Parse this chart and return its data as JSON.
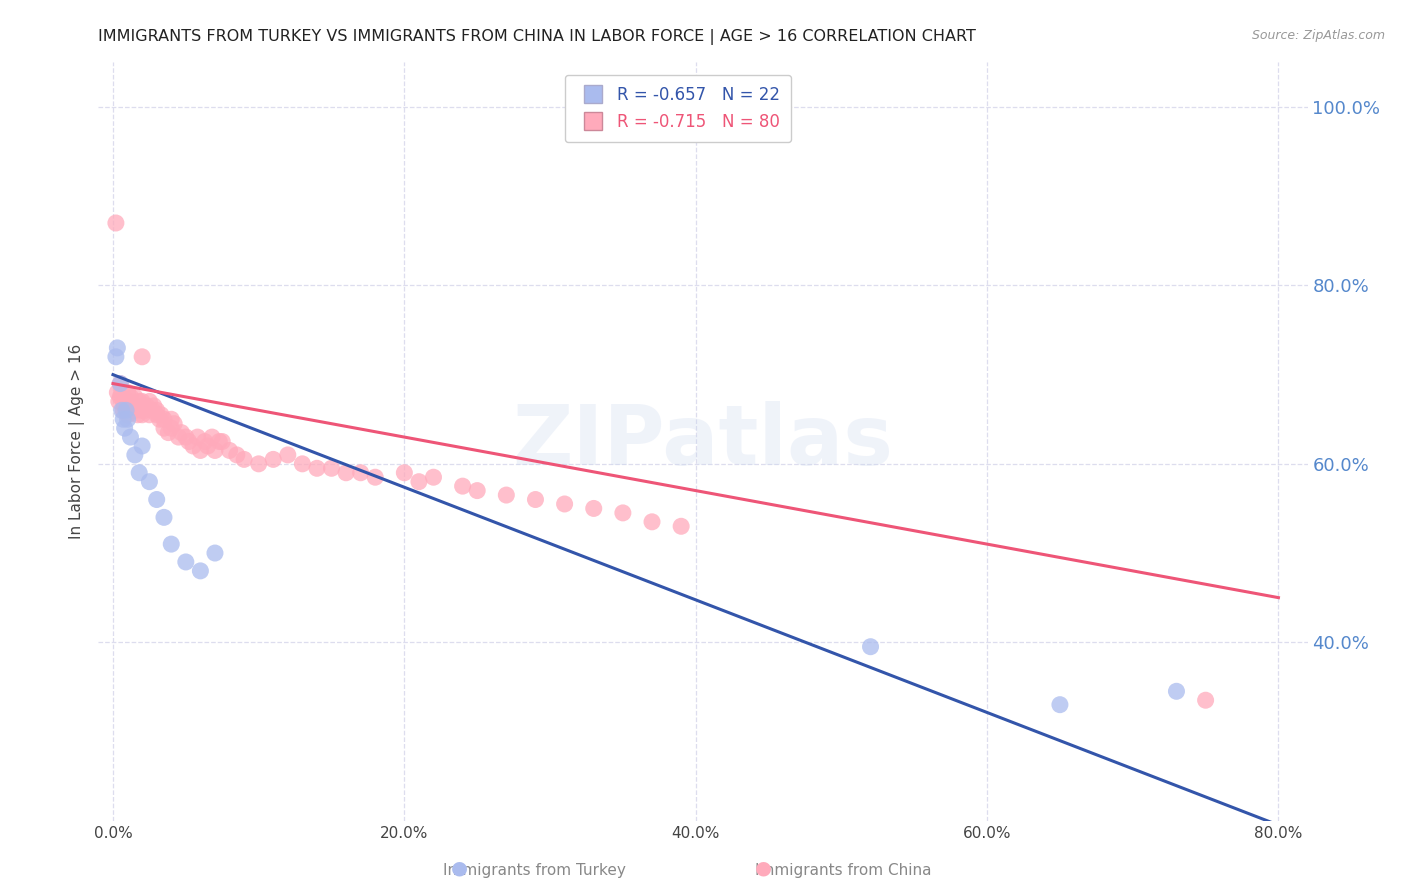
{
  "title": "IMMIGRANTS FROM TURKEY VS IMMIGRANTS FROM CHINA IN LABOR FORCE | AGE > 16 CORRELATION CHART",
  "source": "Source: ZipAtlas.com",
  "ylabel_left": "In Labor Force | Age > 16",
  "ylabel_right_labels": [
    "100.0%",
    "80.0%",
    "60.0%",
    "40.0%"
  ],
  "ylabel_right_values": [
    1.0,
    0.8,
    0.6,
    0.4
  ],
  "xaxis_labels": [
    "0.0%",
    "20.0%",
    "40.0%",
    "60.0%",
    "80.0%"
  ],
  "xaxis_values": [
    0.0,
    0.2,
    0.4,
    0.6,
    0.8
  ],
  "watermark": "ZIPatlas",
  "turkey_color": "#aabbee",
  "china_color": "#ffaabb",
  "turkey_line_color": "#3355aa",
  "china_line_color": "#ee5577",
  "background_color": "#ffffff",
  "grid_color": "#ddddee",
  "title_color": "#222222",
  "right_axis_color": "#5588cc",
  "turkey_R": -0.657,
  "turkey_N": 22,
  "china_R": -0.715,
  "china_N": 80,
  "turkey_scatter_x": [
    0.002,
    0.003,
    0.005,
    0.006,
    0.007,
    0.008,
    0.009,
    0.01,
    0.012,
    0.015,
    0.018,
    0.02,
    0.025,
    0.03,
    0.035,
    0.04,
    0.05,
    0.06,
    0.07,
    0.52,
    0.65,
    0.73
  ],
  "turkey_scatter_y": [
    0.72,
    0.73,
    0.69,
    0.66,
    0.65,
    0.64,
    0.66,
    0.65,
    0.63,
    0.61,
    0.59,
    0.62,
    0.58,
    0.56,
    0.54,
    0.51,
    0.49,
    0.48,
    0.5,
    0.395,
    0.33,
    0.345
  ],
  "china_scatter_x": [
    0.002,
    0.003,
    0.004,
    0.005,
    0.005,
    0.006,
    0.007,
    0.007,
    0.008,
    0.009,
    0.01,
    0.01,
    0.01,
    0.011,
    0.012,
    0.013,
    0.014,
    0.015,
    0.015,
    0.016,
    0.017,
    0.018,
    0.019,
    0.02,
    0.02,
    0.022,
    0.023,
    0.025,
    0.025,
    0.027,
    0.028,
    0.03,
    0.03,
    0.032,
    0.033,
    0.035,
    0.035,
    0.038,
    0.04,
    0.04,
    0.042,
    0.045,
    0.047,
    0.05,
    0.052,
    0.055,
    0.058,
    0.06,
    0.063,
    0.065,
    0.068,
    0.07,
    0.073,
    0.075,
    0.08,
    0.085,
    0.09,
    0.1,
    0.11,
    0.12,
    0.13,
    0.14,
    0.15,
    0.16,
    0.17,
    0.18,
    0.2,
    0.21,
    0.22,
    0.24,
    0.25,
    0.27,
    0.29,
    0.31,
    0.33,
    0.35,
    0.37,
    0.39,
    0.02,
    0.75
  ],
  "china_scatter_y": [
    0.87,
    0.68,
    0.67,
    0.69,
    0.675,
    0.68,
    0.67,
    0.66,
    0.665,
    0.67,
    0.68,
    0.665,
    0.655,
    0.67,
    0.675,
    0.665,
    0.66,
    0.675,
    0.66,
    0.665,
    0.655,
    0.67,
    0.66,
    0.67,
    0.655,
    0.66,
    0.665,
    0.67,
    0.655,
    0.66,
    0.665,
    0.66,
    0.655,
    0.65,
    0.655,
    0.64,
    0.65,
    0.635,
    0.65,
    0.64,
    0.645,
    0.63,
    0.635,
    0.63,
    0.625,
    0.62,
    0.63,
    0.615,
    0.625,
    0.62,
    0.63,
    0.615,
    0.625,
    0.625,
    0.615,
    0.61,
    0.605,
    0.6,
    0.605,
    0.61,
    0.6,
    0.595,
    0.595,
    0.59,
    0.59,
    0.585,
    0.59,
    0.58,
    0.585,
    0.575,
    0.57,
    0.565,
    0.56,
    0.555,
    0.55,
    0.545,
    0.535,
    0.53,
    0.72,
    0.335
  ],
  "xlim": [
    -0.01,
    0.82
  ],
  "ylim": [
    0.2,
    1.05
  ],
  "turkey_line_x": [
    0.0,
    0.8
  ],
  "turkey_line_y": [
    0.7,
    0.195
  ],
  "china_line_x": [
    0.0,
    0.8
  ],
  "china_line_y": [
    0.69,
    0.45
  ]
}
